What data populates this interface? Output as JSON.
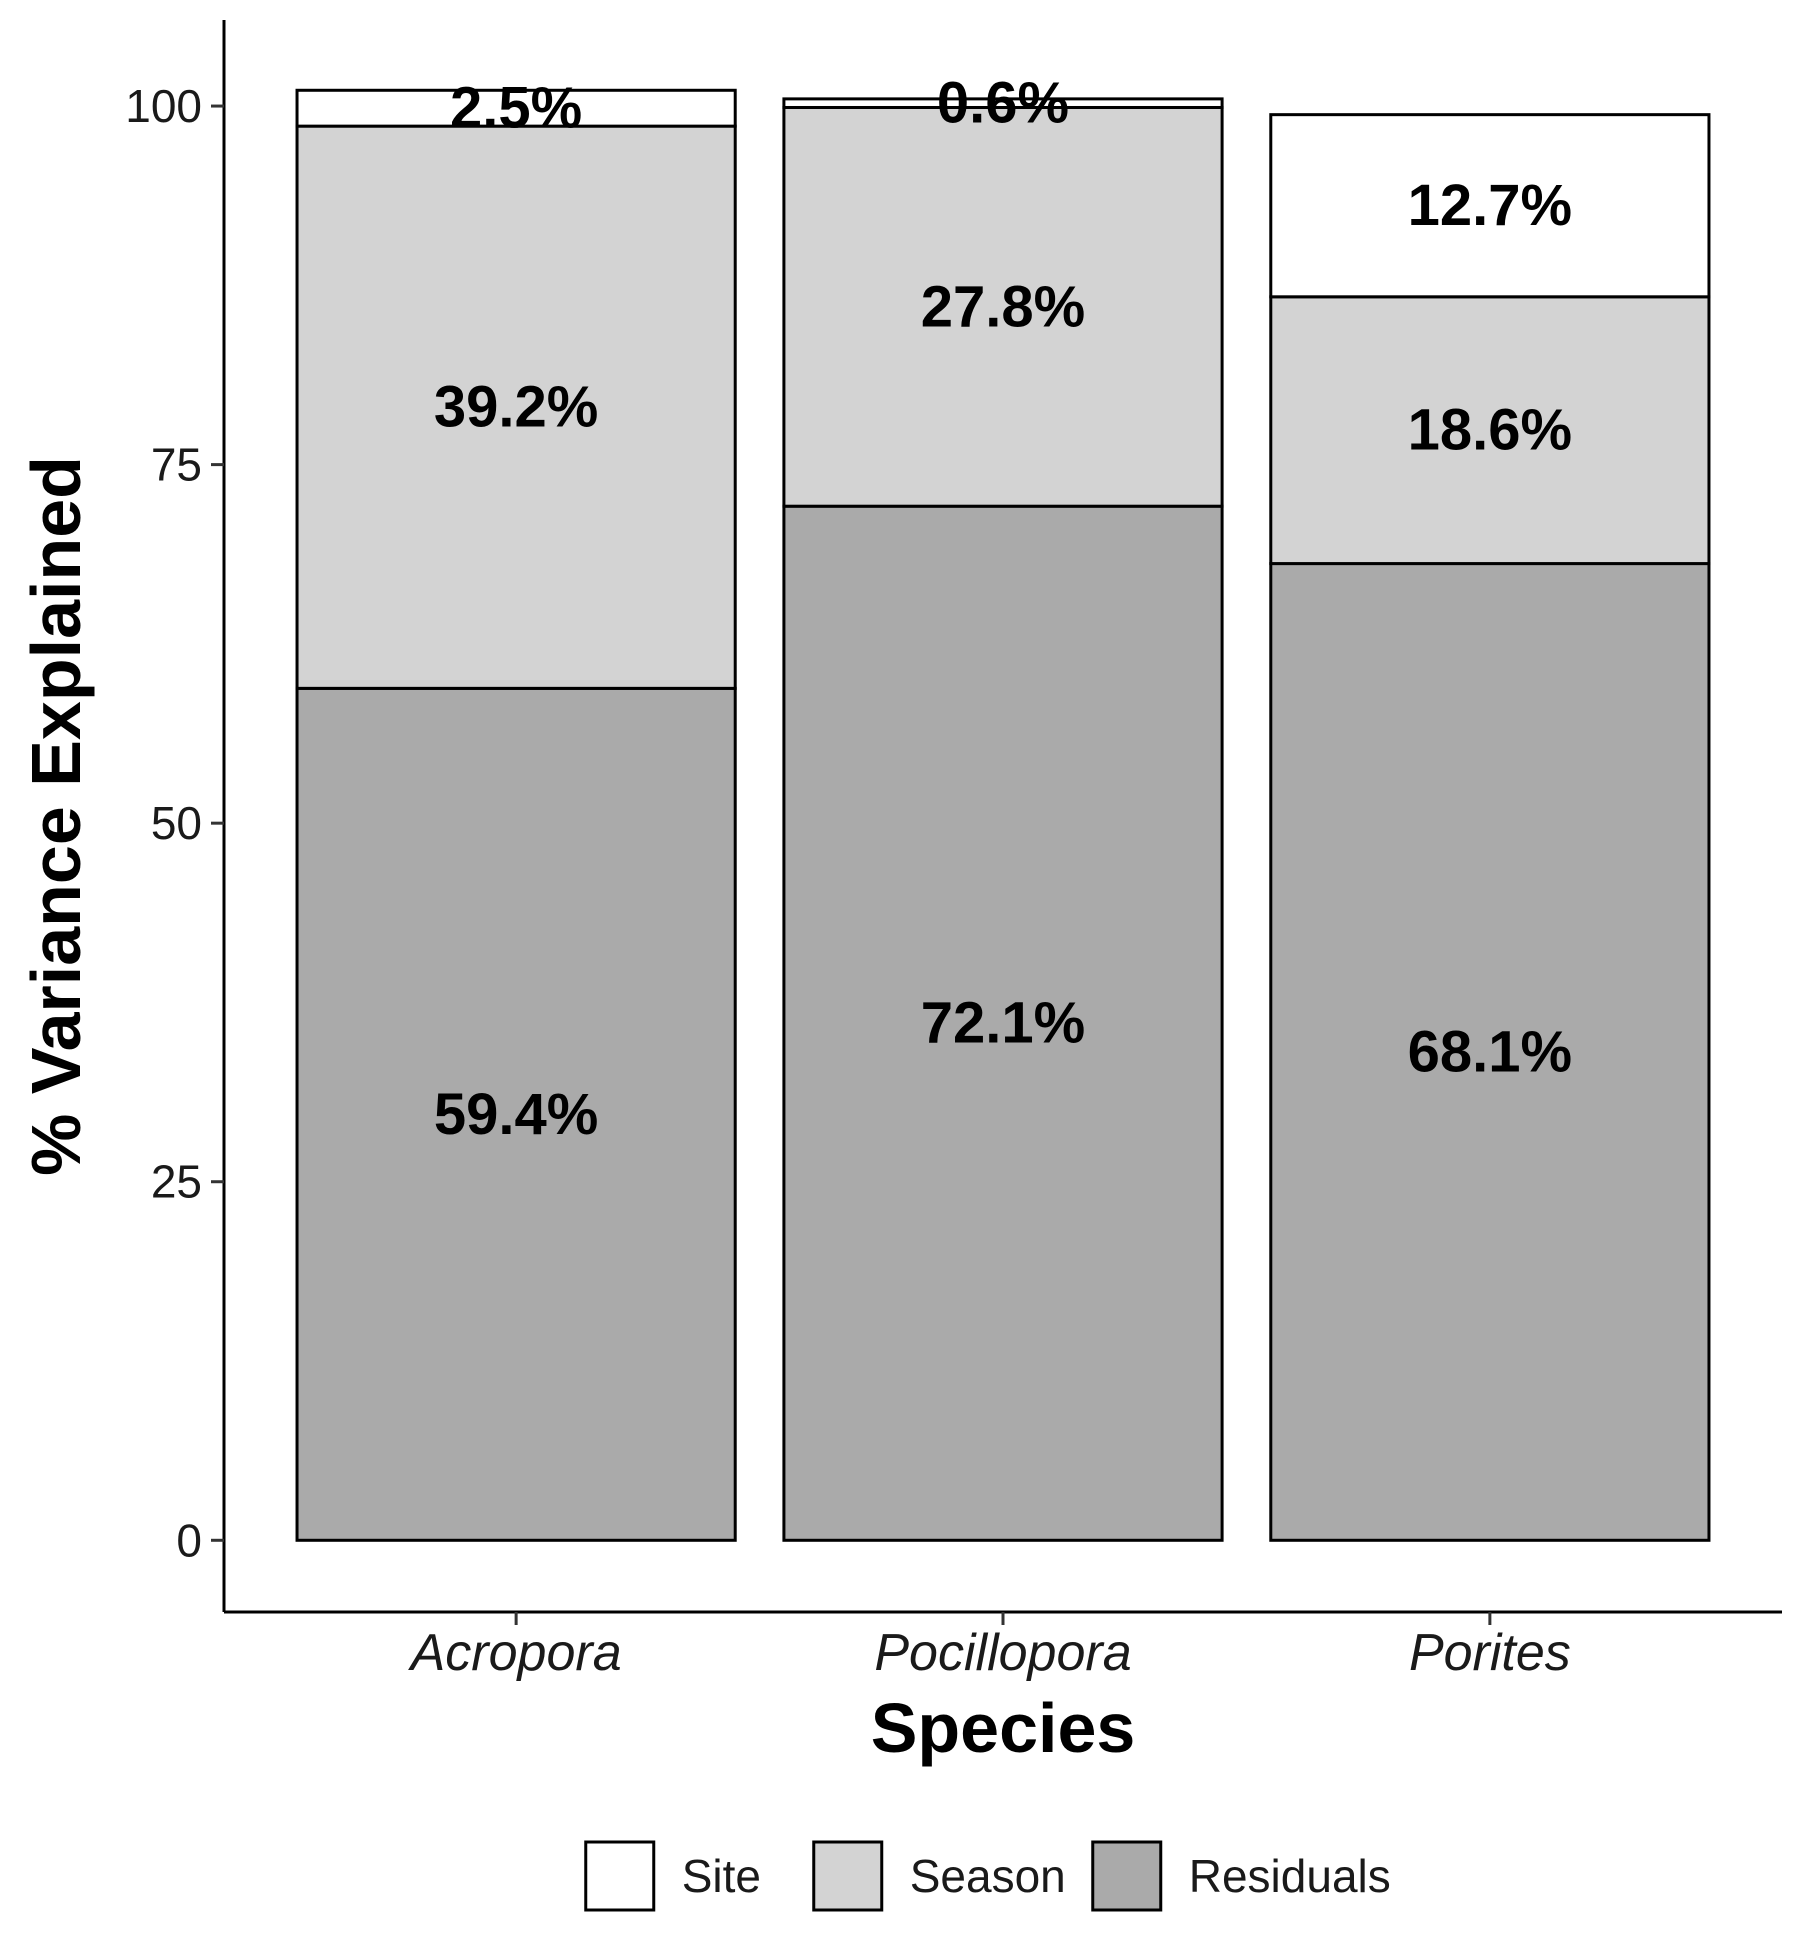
{
  "chart_data": {
    "type": "bar",
    "stacked": true,
    "xlabel": "Species",
    "ylabel": "% Variance Explained",
    "ylim": [
      -5,
      106
    ],
    "yticks": [
      0,
      25,
      50,
      75,
      100
    ],
    "categories": [
      "Acropora",
      "Pocillopora",
      "Porites"
    ],
    "series": [
      {
        "name": "Residuals",
        "color": "#aaaaaa",
        "values": [
          59.4,
          72.1,
          68.1
        ],
        "labels": [
          "59.4%",
          "72.1%",
          "68.1%"
        ]
      },
      {
        "name": "Season",
        "color": "#d3d3d3",
        "values": [
          39.2,
          27.8,
          18.6
        ],
        "labels": [
          "39.2%",
          "27.8%",
          "18.6%"
        ]
      },
      {
        "name": "Site",
        "color": "#ffffff",
        "values": [
          2.5,
          0.6,
          12.7
        ],
        "labels": [
          "2.5%",
          "0.6%",
          "12.7%"
        ]
      }
    ],
    "legend": {
      "position": "bottom",
      "order": [
        "Site",
        "Season",
        "Residuals"
      ]
    },
    "grid": false
  }
}
